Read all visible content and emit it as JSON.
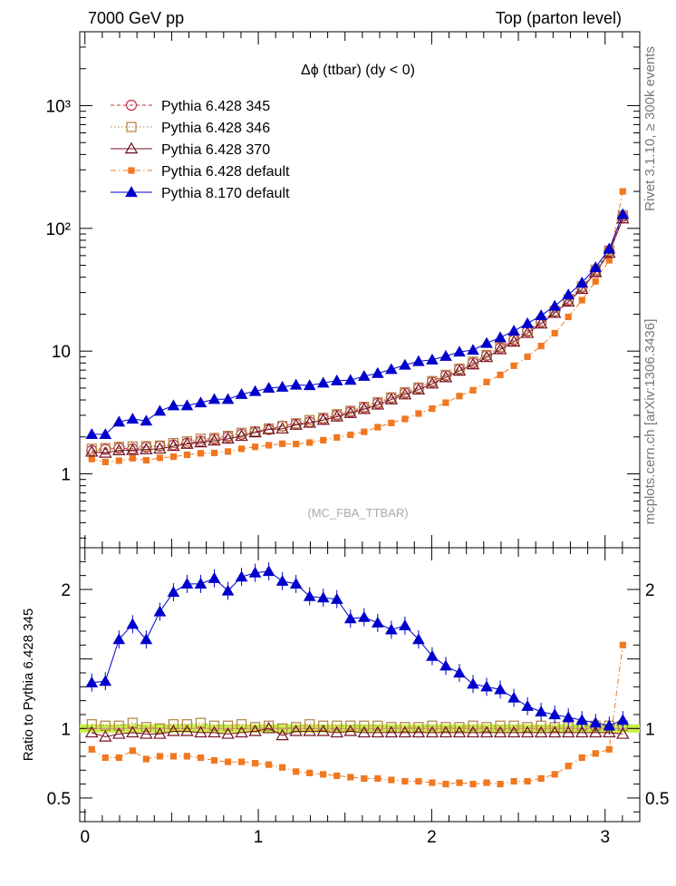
{
  "header": {
    "left": "7000 GeV pp",
    "right": "Top (parton level)"
  },
  "side_labels": {
    "rivet": "Rivet 3.1.10, ≥ 300k events",
    "mcplots": "mcplots.cern.ch [arXiv:1306.3436]"
  },
  "chart_data": [
    {
      "type": "line",
      "title": "Δϕ (ttbar) (dy < 0)",
      "watermark": "(MC_FBA_TTBAR)",
      "yscale": "log",
      "xlim": [
        -0.03,
        3.2
      ],
      "ylim": [
        0.25,
        4000
      ],
      "ytick_labels": [
        "1",
        "10",
        "10²",
        "10³"
      ],
      "legend_position": "top-left",
      "x": [
        0.0393,
        0.1178,
        0.1963,
        0.2749,
        0.3534,
        0.432,
        0.5105,
        0.589,
        0.6676,
        0.7461,
        0.8247,
        0.9032,
        0.9817,
        1.0603,
        1.1388,
        1.2174,
        1.2959,
        1.3744,
        1.453,
        1.5315,
        1.6101,
        1.6886,
        1.7671,
        1.8457,
        1.9242,
        2.0028,
        2.0813,
        2.1598,
        2.2384,
        2.3169,
        2.3955,
        2.474,
        2.5525,
        2.6311,
        2.7096,
        2.7882,
        2.8667,
        2.9452,
        3.0238,
        3.1023
      ],
      "series": [
        {
          "name": "Pythia 6.428 345",
          "color": "#c03040",
          "marker": "open-circle",
          "line": "dashed",
          "values": [
            1.55,
            1.58,
            1.62,
            1.6,
            1.65,
            1.68,
            1.72,
            1.78,
            1.85,
            1.92,
            2.0,
            2.1,
            2.2,
            2.3,
            2.45,
            2.55,
            2.65,
            2.8,
            3.0,
            3.2,
            3.45,
            3.75,
            4.15,
            4.55,
            5.0,
            5.6,
            6.3,
            7.1,
            8.0,
            9.2,
            10.6,
            12.3,
            14.5,
            17.2,
            21.0,
            26.0,
            33.0,
            45.0,
            65.0,
            125.0
          ]
        },
        {
          "name": "Pythia 6.428 346",
          "color": "#b08040",
          "marker": "open-square",
          "line": "dotted",
          "values": [
            1.6,
            1.62,
            1.66,
            1.67,
            1.68,
            1.7,
            1.78,
            1.84,
            1.93,
            1.96,
            2.04,
            2.16,
            2.22,
            2.34,
            2.45,
            2.58,
            2.74,
            2.86,
            3.06,
            3.26,
            3.52,
            3.83,
            4.2,
            4.62,
            5.05,
            5.7,
            6.4,
            7.2,
            8.2,
            9.3,
            10.8,
            12.5,
            14.7,
            17.5,
            21.2,
            26.4,
            33.6,
            46.0,
            66.0,
            128.0
          ]
        },
        {
          "name": "Pythia 6.428 370",
          "color": "#701020",
          "marker": "open-triangle",
          "line": "solid",
          "values": [
            1.51,
            1.48,
            1.55,
            1.56,
            1.58,
            1.6,
            1.68,
            1.75,
            1.8,
            1.86,
            1.93,
            2.03,
            2.17,
            2.3,
            2.33,
            2.5,
            2.6,
            2.74,
            2.92,
            3.12,
            3.36,
            3.65,
            4.03,
            4.42,
            4.85,
            5.42,
            6.1,
            6.9,
            7.76,
            8.9,
            10.3,
            11.9,
            14.0,
            16.7,
            20.4,
            25.2,
            32.0,
            43.8,
            63.0,
            120.0
          ]
        },
        {
          "name": "Pythia 6.428 default",
          "color": "#f07820",
          "marker": "filled-square",
          "line": "dashdot",
          "values": [
            1.32,
            1.25,
            1.28,
            1.34,
            1.29,
            1.35,
            1.38,
            1.43,
            1.47,
            1.48,
            1.52,
            1.6,
            1.66,
            1.71,
            1.76,
            1.75,
            1.8,
            1.88,
            1.98,
            2.08,
            2.2,
            2.4,
            2.6,
            2.8,
            3.1,
            3.4,
            3.8,
            4.3,
            4.8,
            5.6,
            6.4,
            7.6,
            9.0,
            11.0,
            14.0,
            19.0,
            26.0,
            37.0,
            55.0,
            200.0
          ]
        },
        {
          "name": "Pythia 8.170 default",
          "color": "#0000cc",
          "marker": "filled-triangle",
          "line": "solid",
          "values": [
            2.1,
            2.1,
            2.65,
            2.8,
            2.7,
            3.25,
            3.6,
            3.6,
            3.8,
            4.05,
            4.05,
            4.45,
            4.7,
            5.0,
            5.1,
            5.3,
            5.25,
            5.5,
            5.75,
            5.8,
            6.25,
            6.6,
            7.1,
            7.7,
            8.25,
            8.5,
            9.1,
            9.85,
            10.2,
            11.6,
            12.9,
            14.6,
            16.8,
            19.5,
            23.3,
            28.8,
            36.0,
            48.0,
            68.0,
            130.0
          ]
        }
      ]
    },
    {
      "type": "line",
      "ylabel": "Ratio to Pythia 6.428 345",
      "xlim": [
        -0.03,
        3.2
      ],
      "ylim": [
        0.33,
        2.3
      ],
      "xtick_labels": [
        "0",
        "1",
        "2",
        "3"
      ],
      "ytick_labels": [
        "0.5",
        "1",
        "2"
      ],
      "reference_band": [
        0.97,
        1.03
      ],
      "series": [
        {
          "name": "Pythia 6.428 346",
          "values": [
            1.03,
            1.02,
            1.02,
            1.04,
            1.01,
            1.0,
            1.03,
            1.03,
            1.04,
            1.02,
            1.02,
            1.03,
            1.01,
            1.02,
            1.0,
            1.01,
            1.03,
            1.02,
            1.02,
            1.02,
            1.02,
            1.02,
            1.01,
            1.01,
            1.01,
            1.02,
            1.01,
            1.01,
            1.02,
            1.01,
            1.02,
            1.02,
            1.01,
            1.02,
            1.01,
            1.01,
            1.02,
            1.02,
            1.02,
            1.02
          ]
        },
        {
          "name": "Pythia 6.428 370",
          "values": [
            0.97,
            0.94,
            0.96,
            0.97,
            0.96,
            0.96,
            0.98,
            0.98,
            0.97,
            0.97,
            0.96,
            0.97,
            0.98,
            1.0,
            0.95,
            0.98,
            0.98,
            0.98,
            0.97,
            0.98,
            0.97,
            0.97,
            0.97,
            0.97,
            0.97,
            0.97,
            0.97,
            0.97,
            0.97,
            0.97,
            0.97,
            0.97,
            0.97,
            0.97,
            0.97,
            0.97,
            0.97,
            0.97,
            0.97,
            0.96
          ]
        },
        {
          "name": "Pythia 6.428 default",
          "values": [
            0.85,
            0.79,
            0.79,
            0.84,
            0.78,
            0.8,
            0.8,
            0.8,
            0.79,
            0.77,
            0.76,
            0.76,
            0.75,
            0.74,
            0.72,
            0.69,
            0.68,
            0.67,
            0.66,
            0.65,
            0.64,
            0.64,
            0.63,
            0.62,
            0.62,
            0.61,
            0.6,
            0.61,
            0.6,
            0.61,
            0.6,
            0.62,
            0.62,
            0.64,
            0.67,
            0.73,
            0.79,
            0.82,
            0.85,
            1.6
          ]
        },
        {
          "name": "Pythia 8.170 default",
          "values": [
            1.33,
            1.34,
            1.64,
            1.75,
            1.64,
            1.84,
            1.98,
            2.04,
            2.04,
            2.08,
            1.99,
            2.09,
            2.12,
            2.13,
            2.06,
            2.04,
            1.95,
            1.94,
            1.93,
            1.79,
            1.8,
            1.76,
            1.71,
            1.74,
            1.64,
            1.52,
            1.45,
            1.4,
            1.32,
            1.3,
            1.28,
            1.22,
            1.16,
            1.12,
            1.1,
            1.08,
            1.06,
            1.04,
            1.02,
            1.06
          ]
        }
      ]
    }
  ]
}
